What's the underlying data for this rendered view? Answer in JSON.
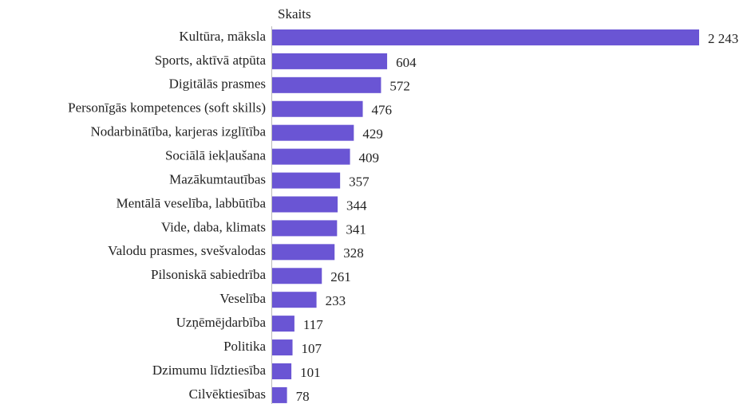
{
  "chart_data": {
    "type": "hbar",
    "subtitle": "Skaits",
    "categories": [
      "Kultūra, māksla",
      "Sports, aktīvā atpūta",
      "Digitālās prasmes",
      "Personīgās kompetences (soft skills)",
      "Nodarbinātība, karjeras izglītība",
      "Sociālā iekļaušana",
      "Mazākumtautības",
      "Mentālā veselība, labbūtība",
      "Vide, daba, klimats",
      "Valodu prasmes, svešvalodas",
      "Pilsoniskā sabiedrība",
      "Veselība",
      "Uzņēmējdarbība",
      "Politika",
      "Dzimumu līdztiesība",
      "Cilvēktiesības"
    ],
    "values": [
      2243,
      604,
      572,
      476,
      429,
      409,
      357,
      344,
      341,
      328,
      261,
      233,
      117,
      107,
      101,
      78
    ],
    "value_labels": [
      "2 243",
      "604",
      "572",
      "476",
      "429",
      "409",
      "357",
      "344",
      "341",
      "328",
      "261",
      "233",
      "117",
      "107",
      "101",
      "78"
    ],
    "color": "#6a55d4",
    "xlim": [
      0,
      2243
    ]
  }
}
